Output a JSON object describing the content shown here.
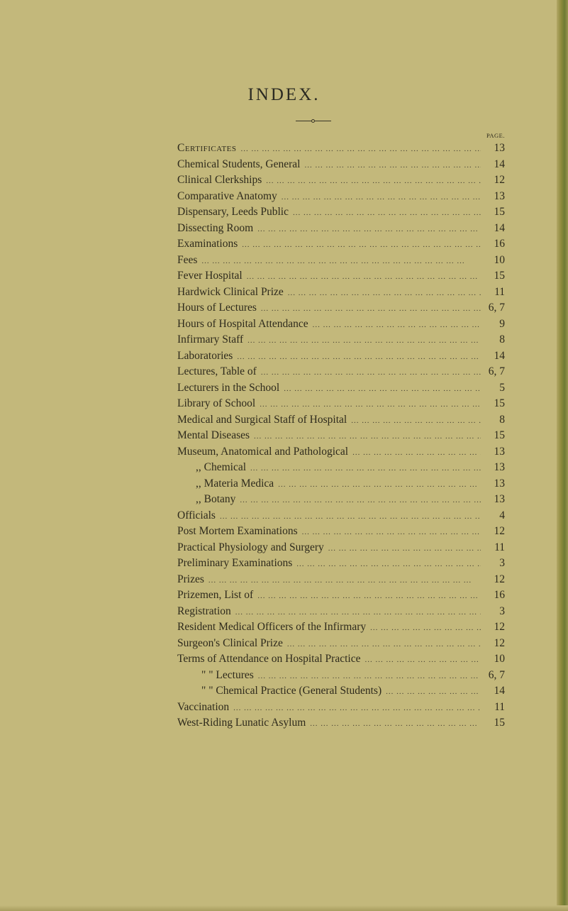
{
  "title": "INDEX.",
  "page_header": "PAGE.",
  "entries": [
    {
      "label": "Certificates",
      "page": "13"
    },
    {
      "label": "Chemical Students, General",
      "page": "14"
    },
    {
      "label": "Clinical Clerkships",
      "page": "12"
    },
    {
      "label": "Comparative Anatomy",
      "page": "13"
    },
    {
      "label": "Dispensary, Leeds Public",
      "page": "15"
    },
    {
      "label": "Dissecting Room",
      "page": "14"
    },
    {
      "label": "Examinations",
      "page": "16"
    },
    {
      "label": "Fees",
      "page": "10"
    },
    {
      "label": "Fever Hospital",
      "page": "15"
    },
    {
      "label": "Hardwick Clinical Prize",
      "page": "11"
    },
    {
      "label": "Hours of Lectures",
      "page": "6, 7"
    },
    {
      "label": "Hours of Hospital Attendance",
      "page": "9"
    },
    {
      "label": "Infirmary Staff",
      "page": "8"
    },
    {
      "label": "Laboratories",
      "page": "14"
    },
    {
      "label": "Lectures, Table of",
      "page": "6, 7"
    },
    {
      "label": "Lecturers in the School",
      "page": "5"
    },
    {
      "label": "Library of School",
      "page": "15"
    },
    {
      "label": "Medical and Surgical Staff of Hospital",
      "page": "8"
    },
    {
      "label": "Mental Diseases",
      "page": "15"
    },
    {
      "label": "Museum, Anatomical and Pathological",
      "page": "13"
    },
    {
      "label": ",, Chemical",
      "page": "13"
    },
    {
      "label": ",, Materia Medica",
      "page": "13"
    },
    {
      "label": ",, Botany",
      "page": "13"
    },
    {
      "label": "Officials",
      "page": "4"
    },
    {
      "label": "Post Mortem Examinations",
      "page": "12"
    },
    {
      "label": "Practical Physiology and Surgery",
      "page": "11"
    },
    {
      "label": "Preliminary Examinations",
      "page": "3"
    },
    {
      "label": "Prizes",
      "page": "12"
    },
    {
      "label": "Prizemen, List of",
      "page": "16"
    },
    {
      "label": "Registration",
      "page": "3"
    },
    {
      "label": "Resident Medical Officers of the Infirmary",
      "page": "12"
    },
    {
      "label": "Surgeon's Clinical Prize",
      "page": "12"
    },
    {
      "label": "Terms of Attendance on Hospital Practice",
      "page": "10"
    },
    {
      "label": "\" \" Lectures",
      "page": "6, 7"
    },
    {
      "label": "\" \" Chemical Practice (General Students)",
      "page": "14"
    },
    {
      "label": "Vaccination",
      "page": "11"
    },
    {
      "label": "West-Riding Lunatic Asylum",
      "page": "15"
    }
  ]
}
